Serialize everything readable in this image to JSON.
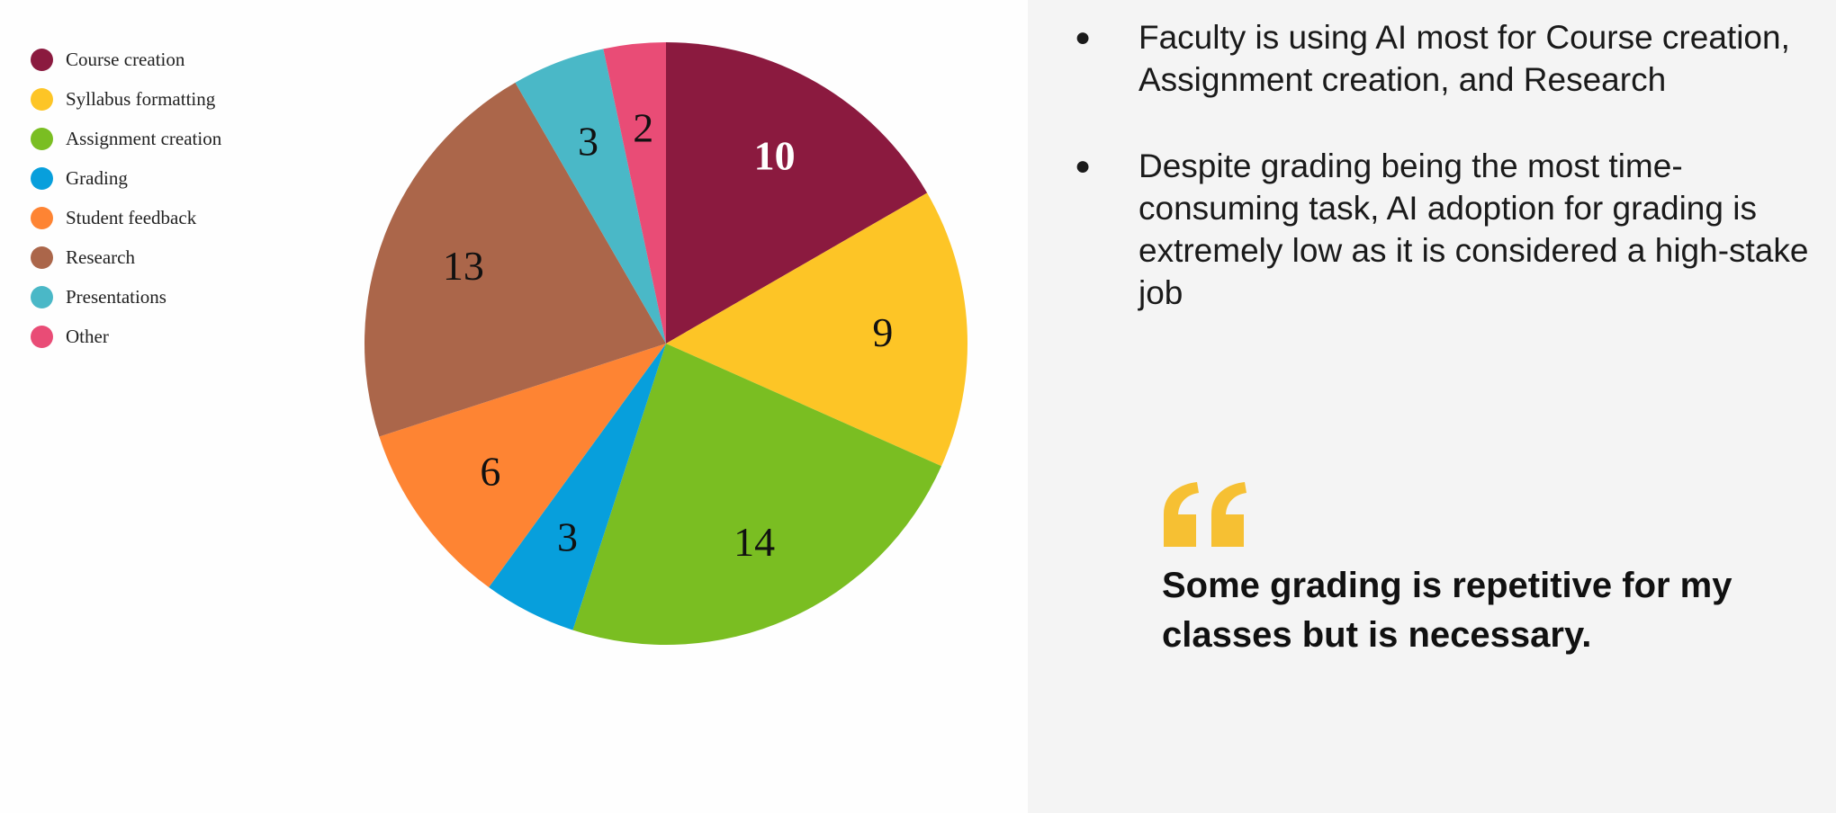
{
  "chart_data": {
    "type": "pie",
    "title": "",
    "categories": [
      "Course creation",
      "Syllabus formatting",
      "Assignment creation",
      "Grading",
      "Student feedback",
      "Research",
      "Presentations",
      "Other"
    ],
    "values": [
      10,
      9,
      14,
      3,
      6,
      13,
      3,
      2
    ],
    "colors": [
      "#8B1A3F",
      "#FDC526",
      "#7ABE22",
      "#079FDC",
      "#FE8433",
      "#AB664A",
      "#4AB8C7",
      "#E94C76"
    ],
    "label_colors": [
      "#ffffff",
      "#111111",
      "#111111",
      "#111111",
      "#111111",
      "#111111",
      "#111111",
      "#111111"
    ],
    "start_angle": "12 o'clock",
    "direction": "clockwise",
    "legend": "top-left"
  },
  "bullets": [
    "Faculty is using AI most for Course creation, Assignment creation, and Research",
    "Despite grading being the most time-consuming task, AI adoption for grading is extremely low as it is considered a high-stake job"
  ],
  "bullet_symbol": "●",
  "quote": {
    "text": "Some grading is repetitive for my classes but is necessary.",
    "mark_color": "#F6C033"
  }
}
